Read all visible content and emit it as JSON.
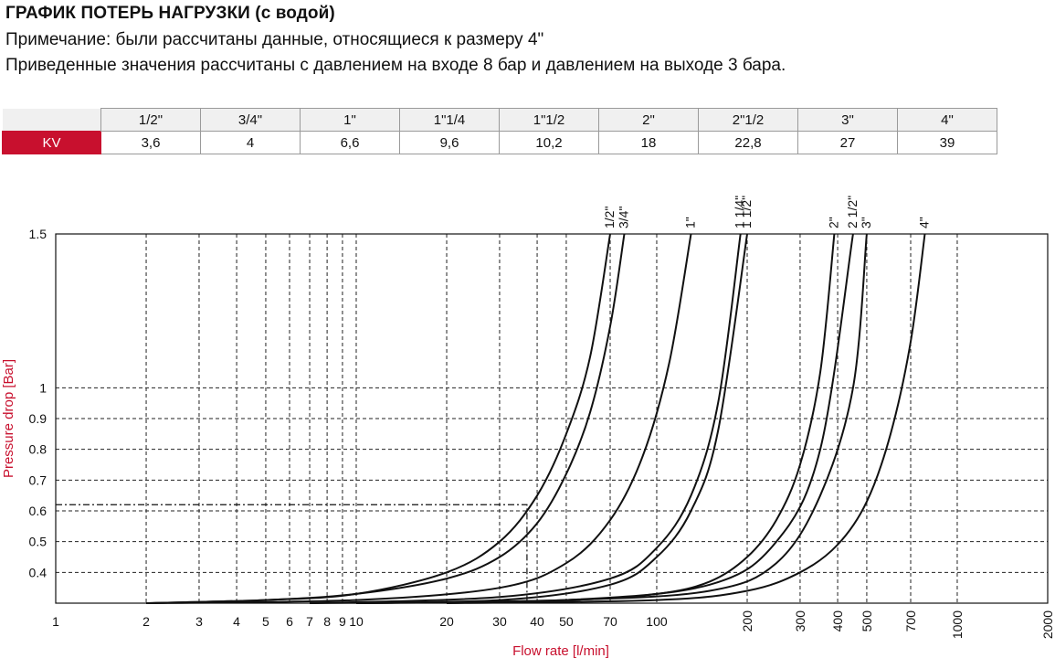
{
  "header": {
    "title": "ГРАФИК ПОТЕРЬ НАГРУЗКИ (с водой)",
    "note": "Примечание: были рассчитаны данные, относящиеся к размеру 4\"",
    "conditions": "Приведенные значения рассчитаны с давлением на входе 8 бар и давлением на выходе 3 бара."
  },
  "kv_table": {
    "row_label": "KV",
    "sizes": [
      "1/2\"",
      "3/4\"",
      "1\"",
      "1\"1/4",
      "1\"1/2",
      "2\"",
      "2\"1/2",
      "3\"",
      "4\""
    ],
    "values": [
      "3,6",
      "4",
      "6,6",
      "9,6",
      "10,2",
      "18",
      "22,8",
      "27",
      "39"
    ]
  },
  "chart_data": {
    "type": "line",
    "xscale": "log",
    "xlabel": "Flow rate [l/min]",
    "ylabel": "Pressure drop [Bar]",
    "xlim": [
      1,
      2000
    ],
    "ylim": [
      0.3,
      1.5
    ],
    "x_ticks": [
      1,
      2,
      3,
      4,
      5,
      6,
      7,
      8,
      9,
      10,
      20,
      30,
      40,
      50,
      70,
      100,
      200,
      300,
      400,
      500,
      700,
      1000,
      2000
    ],
    "x_tick_labels": [
      "1",
      "2",
      "3",
      "4",
      "5",
      "6",
      "7",
      "8",
      "9",
      "10",
      "20",
      "30",
      "40",
      "50",
      "70",
      "100",
      "200",
      "300",
      "400",
      "500",
      "700",
      "1000",
      "2000"
    ],
    "x_tick_labels_rotated": [
      "200",
      "300",
      "400",
      "500",
      "700",
      "1000",
      "2000"
    ],
    "y_ticks": [
      0.4,
      0.5,
      0.6,
      0.7,
      0.8,
      0.9,
      1,
      1.5
    ],
    "y_tick_labels": [
      "0.4",
      "0.5",
      "0.6",
      "0.7",
      "0.8",
      "0.9",
      "1",
      "1.5"
    ],
    "grid": true,
    "reference_line": {
      "x": 37,
      "y": 0.62
    },
    "series": [
      {
        "name": "1/2\"",
        "x": [
          2,
          5,
          10,
          20,
          30,
          40,
          50,
          60,
          70
        ],
        "y": [
          0.3,
          0.31,
          0.33,
          0.4,
          0.5,
          0.65,
          0.85,
          1.1,
          1.5
        ]
      },
      {
        "name": "3/4\"",
        "x": [
          2,
          5,
          10,
          20,
          30,
          40,
          50,
          60,
          70,
          78
        ],
        "y": [
          0.3,
          0.31,
          0.33,
          0.38,
          0.45,
          0.56,
          0.72,
          0.92,
          1.2,
          1.5
        ]
      },
      {
        "name": "1\"",
        "x": [
          2,
          10,
          30,
          50,
          70,
          90,
          110,
          130
        ],
        "y": [
          0.3,
          0.31,
          0.35,
          0.43,
          0.57,
          0.78,
          1.08,
          1.5
        ]
      },
      {
        "name": "1 1/4\"",
        "x": [
          7,
          30,
          70,
          100,
          130,
          160,
          190
        ],
        "y": [
          0.3,
          0.32,
          0.38,
          0.48,
          0.65,
          0.95,
          1.5
        ]
      },
      {
        "name": "1 1/2\"",
        "x": [
          7,
          30,
          70,
          100,
          130,
          160,
          200
        ],
        "y": [
          0.3,
          0.31,
          0.36,
          0.45,
          0.6,
          0.86,
          1.5
        ]
      },
      {
        "name": "2\"",
        "x": [
          10,
          50,
          100,
          150,
          200,
          250,
          300,
          350,
          390
        ],
        "y": [
          0.3,
          0.31,
          0.33,
          0.37,
          0.45,
          0.57,
          0.75,
          1.05,
          1.5
        ]
      },
      {
        "name": "2 1/2\"",
        "x": [
          10,
          50,
          150,
          250,
          350,
          450
        ],
        "y": [
          0.3,
          0.31,
          0.36,
          0.5,
          0.8,
          1.5
        ]
      },
      {
        "name": "3\"",
        "x": [
          10,
          50,
          150,
          250,
          350,
          450,
          500
        ],
        "y": [
          0.3,
          0.31,
          0.34,
          0.43,
          0.65,
          1.0,
          1.5
        ]
      },
      {
        "name": "4\"",
        "x": [
          20,
          100,
          200,
          300,
          400,
          500,
          600,
          700,
          780
        ],
        "y": [
          0.3,
          0.31,
          0.34,
          0.4,
          0.49,
          0.63,
          0.85,
          1.15,
          1.5
        ]
      }
    ]
  }
}
